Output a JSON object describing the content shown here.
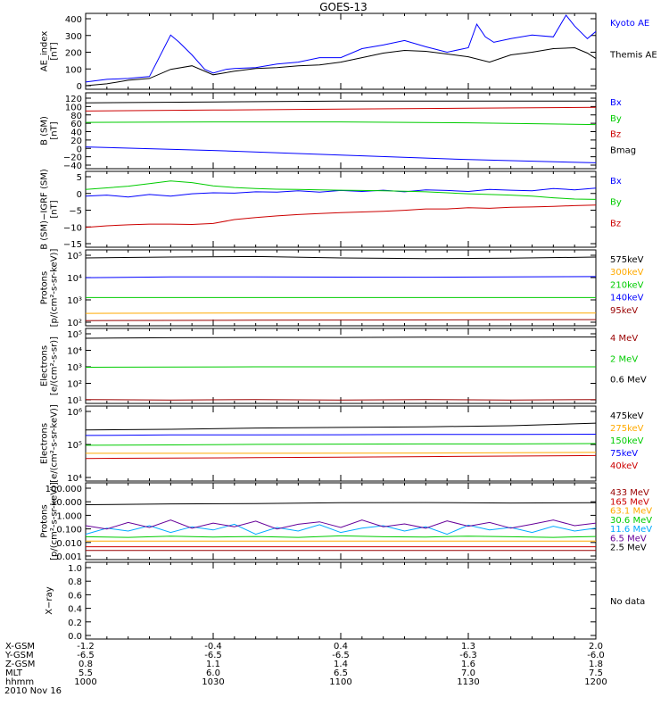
{
  "title": "GOES-13",
  "no_data_text": "No data",
  "date": "2010 Nov 16",
  "colors": {
    "blue": "#0000ff",
    "red": "#cc0000",
    "green": "#00cc00",
    "black": "#000000",
    "orange": "#ffaa00",
    "darkred": "#990000",
    "cyan": "#00aaff",
    "purple": "#660099",
    "navy": "#000099"
  },
  "orbit_rows": [
    {
      "label": "X-GSM",
      "values": [
        "-1.2",
        "-0.4",
        "0.4",
        "1.3",
        "2.0"
      ]
    },
    {
      "label": "Y-GSM",
      "values": [
        "-6.5",
        "-6.5",
        "-6.5",
        "-6.3",
        "-6.0"
      ]
    },
    {
      "label": "Z-GSM",
      "values": [
        "0.8",
        "1.1",
        "1.4",
        "1.6",
        "1.8"
      ]
    },
    {
      "label": "MLT",
      "values": [
        "5.5",
        "6.0",
        "6.5",
        "7.0",
        "7.5"
      ]
    },
    {
      "label": "hhmm",
      "values": [
        "1000",
        "1030",
        "1100",
        "1130",
        "1200"
      ]
    }
  ],
  "chart_data": [
    {
      "type": "line",
      "ylabel": "AE_index\n[nT]",
      "yticks": [
        "400",
        "300",
        "200",
        "100",
        "0"
      ],
      "ylim": [
        0,
        420
      ],
      "x_range_minutes": [
        0,
        120
      ],
      "series": [
        {
          "name": "Kyoto AE",
          "color": "#0000ff",
          "x": [
            0,
            5,
            10,
            15,
            20,
            22,
            25,
            28,
            30,
            33,
            35,
            40,
            45,
            50,
            55,
            60,
            65,
            70,
            75,
            80,
            85,
            90,
            92,
            94,
            96,
            100,
            105,
            110,
            113,
            115,
            118,
            120
          ],
          "y": [
            40,
            55,
            60,
            70,
            300,
            260,
            190,
            110,
            90,
            110,
            115,
            120,
            140,
            150,
            175,
            175,
            225,
            245,
            270,
            235,
            205,
            230,
            360,
            290,
            260,
            280,
            300,
            290,
            410,
            350,
            280,
            320
          ]
        },
        {
          "name": "Themis AE",
          "color": "#000000",
          "x": [
            0,
            5,
            10,
            15,
            20,
            25,
            30,
            35,
            40,
            45,
            50,
            55,
            60,
            65,
            70,
            75,
            80,
            85,
            90,
            95,
            100,
            105,
            110,
            115,
            118,
            120
          ],
          "y": [
            20,
            30,
            50,
            60,
            110,
            130,
            80,
            100,
            115,
            120,
            130,
            135,
            150,
            175,
            200,
            215,
            210,
            195,
            180,
            150,
            190,
            205,
            225,
            230,
            200,
            170
          ]
        }
      ]
    },
    {
      "type": "line",
      "ylabel": "B (SM)\n[nT]",
      "yticks": [
        "120",
        "100",
        "80",
        "60",
        "40",
        "20",
        "0",
        "−20",
        "−40"
      ],
      "ylim": [
        -45,
        122
      ],
      "x_range_minutes": [
        0,
        120
      ],
      "series": [
        {
          "name": "Bx",
          "color": "#0000ff",
          "x": [
            0,
            30,
            60,
            90,
            120
          ],
          "y": [
            3,
            -5,
            -15,
            -25,
            -32
          ]
        },
        {
          "name": "By",
          "color": "#00cc00",
          "x": [
            0,
            30,
            60,
            90,
            120
          ],
          "y": [
            57,
            58,
            58,
            56,
            52
          ]
        },
        {
          "name": "Bz",
          "color": "#cc0000",
          "x": [
            0,
            30,
            60,
            90,
            120
          ],
          "y": [
            82,
            84,
            86,
            88,
            90
          ]
        },
        {
          "name": "Bmag",
          "color": "#000000",
          "x": [
            0,
            30,
            60,
            90,
            120
          ],
          "y": [
            100,
            102,
            104,
            104,
            104
          ]
        }
      ]
    },
    {
      "type": "line",
      "ylabel": "B (SM)−IGRF (SM)\n[nT]",
      "yticks": [
        "5",
        "0",
        "−5",
        "−10",
        "−15"
      ],
      "ylim": [
        -17,
        6
      ],
      "x_range_minutes": [
        0,
        120
      ],
      "series": [
        {
          "name": "Bx",
          "color": "#0000ff",
          "x": [
            0,
            5,
            10,
            15,
            20,
            25,
            30,
            35,
            40,
            45,
            50,
            55,
            60,
            65,
            70,
            75,
            80,
            85,
            90,
            95,
            100,
            105,
            110,
            115,
            120
          ],
          "y": [
            -1.5,
            -1.2,
            -1.8,
            -1.0,
            -1.5,
            -0.8,
            -0.5,
            -0.6,
            -0.2,
            -0.3,
            0.1,
            -0.3,
            0.2,
            -0.1,
            0.3,
            -0.2,
            0.4,
            0.2,
            -0.1,
            0.5,
            0.3,
            0.1,
            0.8,
            0.4,
            0.9
          ]
        },
        {
          "name": "By",
          "color": "#00cc00",
          "x": [
            0,
            5,
            10,
            15,
            20,
            25,
            30,
            35,
            40,
            45,
            50,
            55,
            60,
            65,
            70,
            75,
            80,
            85,
            90,
            95,
            100,
            105,
            110,
            115,
            120
          ],
          "y": [
            0.5,
            1.0,
            1.5,
            2.3,
            3.1,
            2.6,
            1.6,
            1.1,
            0.8,
            0.6,
            0.5,
            0.4,
            0.3,
            0.2,
            0.1,
            0.0,
            -0.2,
            -0.5,
            -0.8,
            -1.0,
            -1.2,
            -1.5,
            -2.0,
            -2.4,
            -2.5
          ]
        },
        {
          "name": "Bz",
          "color": "#cc0000",
          "x": [
            0,
            5,
            10,
            15,
            20,
            25,
            30,
            35,
            40,
            45,
            50,
            55,
            60,
            65,
            70,
            75,
            80,
            85,
            90,
            95,
            100,
            105,
            110,
            115,
            120
          ],
          "y": [
            -11,
            -10.5,
            -10.2,
            -10.0,
            -10.0,
            -10.1,
            -9.8,
            -8.6,
            -8.0,
            -7.5,
            -7.1,
            -6.8,
            -6.5,
            -6.3,
            -6.1,
            -5.8,
            -5.4,
            -5.4,
            -5.0,
            -5.2,
            -4.9,
            -4.8,
            -4.6,
            -4.4,
            -4.2
          ]
        }
      ]
    },
    {
      "type": "line",
      "log_scale": true,
      "ylabel": "Protons\n[p/(cm²-s-sr-keV)]",
      "yticks": [
        "10⁵",
        "10⁴",
        "10³",
        "10²"
      ],
      "ylim": [
        100,
        100000
      ],
      "x_range_minutes": [
        0,
        120
      ],
      "series": [
        {
          "name": "575keV",
          "color": "#000000",
          "x": [
            0,
            20,
            40,
            60,
            80,
            100,
            120
          ],
          "y": [
            48000,
            52000,
            55000,
            48000,
            45000,
            47000,
            52000
          ]
        },
        {
          "name": "300keV",
          "color": "#ffaa00",
          "x": [
            0,
            40,
            80,
            120
          ],
          "y": [
            310,
            320,
            320,
            320
          ]
        },
        {
          "name": "210keV",
          "color": "#00cc00",
          "x": [
            0,
            40,
            80,
            120
          ],
          "y": [
            1300,
            1300,
            1300,
            1300
          ]
        },
        {
          "name": "140keV",
          "color": "#0000ff",
          "x": [
            0,
            20,
            40,
            60,
            80,
            100,
            120
          ],
          "y": [
            8000,
            8500,
            8600,
            8400,
            8300,
            8500,
            8800
          ]
        },
        {
          "name": "95keV",
          "color": "#990000",
          "x": [
            0,
            40,
            80,
            120
          ],
          "y": [
            160,
            165,
            170,
            175
          ]
        }
      ]
    },
    {
      "type": "line",
      "log_scale": true,
      "ylabel": "Electrons\n[e/(cm²-s-sr)]",
      "yticks": [
        "10⁵",
        "10⁴",
        "10³",
        "10²",
        "10¹"
      ],
      "ylim": [
        10,
        100000
      ],
      "x_range_minutes": [
        0,
        120
      ],
      "series": [
        {
          "name": "4 MeV",
          "color": "#990000",
          "x": [
            0,
            20,
            40,
            60,
            80,
            100,
            120
          ],
          "y": [
            16,
            15,
            16,
            15,
            16,
            15,
            16
          ]
        },
        {
          "name": "2 MeV",
          "color": "#00cc00",
          "x": [
            0,
            20,
            40,
            60,
            80,
            100,
            120
          ],
          "y": [
            850,
            880,
            900,
            900,
            900,
            900,
            900
          ]
        },
        {
          "name": "0.6 MeV",
          "color": "#000000",
          "x": [
            0,
            20,
            40,
            60,
            80,
            100,
            120
          ],
          "y": [
            30000,
            32000,
            33000,
            33000,
            34000,
            34000,
            35000
          ]
        }
      ]
    },
    {
      "type": "line",
      "log_scale": true,
      "ylabel": "Electrons\n[e/(cm²-s-sr-keV)]",
      "yticks": [
        "10⁶",
        "10⁵",
        "10⁴"
      ],
      "ylim": [
        10000,
        1000000
      ],
      "x_range_minutes": [
        0,
        120
      ],
      "series": [
        {
          "name": "475keV",
          "color": "#000000",
          "x": [
            0,
            20,
            40,
            60,
            80,
            100,
            120
          ],
          "y": [
            230000,
            240000,
            260000,
            270000,
            280000,
            300000,
            350000
          ]
        },
        {
          "name": "275keV",
          "color": "#ffaa00",
          "x": [
            0,
            40,
            80,
            120
          ],
          "y": [
            55000,
            55000,
            56000,
            58000
          ]
        },
        {
          "name": "150keV",
          "color": "#00cc00",
          "x": [
            0,
            20,
            40,
            60,
            80,
            100,
            120
          ],
          "y": [
            90000,
            92000,
            95000,
            97000,
            98000,
            98000,
            100000
          ]
        },
        {
          "name": "75keV",
          "color": "#0000ff",
          "x": [
            0,
            20,
            40,
            60,
            80,
            100,
            120
          ],
          "y": [
            165000,
            170000,
            170000,
            172000,
            175000,
            175000,
            178000
          ]
        },
        {
          "name": "40keV",
          "color": "#cc0000",
          "x": [
            0,
            40,
            80,
            120
          ],
          "y": [
            40000,
            42000,
            45000,
            48000
          ]
        }
      ]
    },
    {
      "type": "line",
      "log_scale": true,
      "ylabel": "Protons\n[p/(cm²-s-sr-keV)]",
      "yticks": [
        "100.000",
        "10.000",
        "1.000",
        "0.100",
        "0.010",
        "0.001"
      ],
      "ylim": [
        0.0005,
        120
      ],
      "x_range_minutes": [
        0,
        120
      ],
      "series": [
        {
          "name": "433 MeV",
          "color": "#990000",
          "x": [
            0,
            40,
            80,
            120
          ],
          "y": [
            0.0022,
            0.0022,
            0.0022,
            0.0022
          ]
        },
        {
          "name": "165 MeV",
          "color": "#cc0000",
          "x": [
            0,
            40,
            80,
            120
          ],
          "y": [
            0.004,
            0.004,
            0.004,
            0.004
          ]
        },
        {
          "name": "63.1 MeV",
          "color": "#ffaa00",
          "x": [
            0,
            40,
            80,
            120
          ],
          "y": [
            0.01,
            0.01,
            0.01,
            0.01
          ]
        },
        {
          "name": "30.6 MeV",
          "color": "#00cc00",
          "x": [
            0,
            10,
            20,
            30,
            40,
            50,
            60,
            70,
            80,
            90,
            100,
            110,
            120
          ],
          "y": [
            0.02,
            0.018,
            0.022,
            0.019,
            0.021,
            0.018,
            0.023,
            0.02,
            0.019,
            0.022,
            0.02,
            0.018,
            0.021
          ]
        },
        {
          "name": "11.6 MeV",
          "color": "#00aaff",
          "x": [
            0,
            5,
            10,
            15,
            20,
            25,
            30,
            35,
            40,
            45,
            50,
            55,
            60,
            65,
            70,
            75,
            80,
            85,
            90,
            95,
            100,
            105,
            110,
            115,
            120
          ],
          "y": [
            0.03,
            0.08,
            0.05,
            0.12,
            0.04,
            0.1,
            0.06,
            0.15,
            0.03,
            0.09,
            0.05,
            0.14,
            0.04,
            0.08,
            0.12,
            0.05,
            0.1,
            0.03,
            0.13,
            0.06,
            0.09,
            0.04,
            0.11,
            0.05,
            0.08
          ]
        },
        {
          "name": "6.5 MeV",
          "color": "#660099",
          "x": [
            0,
            5,
            10,
            15,
            20,
            25,
            30,
            35,
            40,
            45,
            50,
            55,
            60,
            65,
            70,
            75,
            80,
            85,
            90,
            95,
            100,
            105,
            110,
            115,
            120
          ],
          "y": [
            0.12,
            0.07,
            0.2,
            0.09,
            0.3,
            0.08,
            0.18,
            0.1,
            0.25,
            0.07,
            0.15,
            0.22,
            0.09,
            0.3,
            0.1,
            0.16,
            0.08,
            0.26,
            0.11,
            0.2,
            0.08,
            0.15,
            0.3,
            0.12,
            0.18
          ]
        },
        {
          "name": "2.5 MeV",
          "color": "#000000",
          "x": [
            0,
            20,
            40,
            60,
            80,
            100,
            120
          ],
          "y": [
            3.5,
            4.0,
            4.2,
            4.8,
            5.0,
            4.6,
            4.9
          ]
        }
      ]
    },
    {
      "type": "line",
      "ylabel": "X−ray",
      "yticks": [
        "1.0",
        "0.8",
        "0.6",
        "0.4",
        "0.2",
        "0.0"
      ],
      "ylim": [
        0,
        1
      ],
      "x_range_minutes": [
        0,
        120
      ],
      "series": []
    }
  ]
}
